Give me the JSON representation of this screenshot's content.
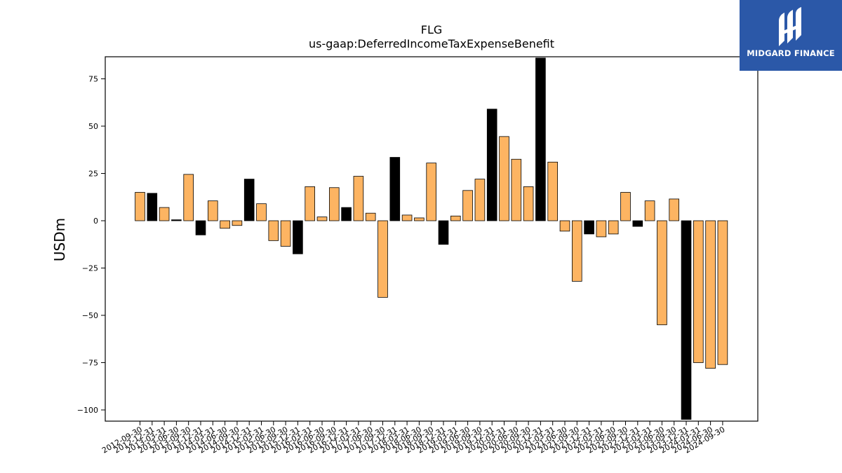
{
  "brand": {
    "name": "MIDGARD FINANCE",
    "bg_color": "#2b58a8"
  },
  "chart_data": {
    "type": "bar",
    "title": "FLG",
    "subtitle": "us-gaap:DeferredIncomeTaxExpenseBenefit",
    "ylabel": "USDm",
    "xlabel": "",
    "ylim": [
      -105,
      86
    ],
    "yticks": [
      -100,
      -75,
      -50,
      -25,
      0,
      25,
      50,
      75
    ],
    "grid": false,
    "colors": {
      "default": "#fdb462",
      "highlight": "#000000"
    },
    "categories": [
      "2012-09-30",
      "2012-12-31",
      "2013-03-31",
      "2013-06-30",
      "2013-09-30",
      "2013-12-31",
      "2014-03-31",
      "2014-06-30",
      "2014-09-30",
      "2014-12-31",
      "2015-03-31",
      "2015-06-30",
      "2015-09-30",
      "2015-12-31",
      "2016-03-31",
      "2016-06-30",
      "2016-09-30",
      "2016-12-31",
      "2017-03-31",
      "2017-06-30",
      "2017-09-30",
      "2017-12-31",
      "2018-03-31",
      "2018-06-30",
      "2018-09-30",
      "2018-12-31",
      "2019-03-31",
      "2019-06-30",
      "2019-09-30",
      "2019-12-31",
      "2020-03-31",
      "2020-06-30",
      "2020-09-30",
      "2020-12-31",
      "2021-03-31",
      "2021-06-30",
      "2021-09-30",
      "2021-12-31",
      "2022-03-31",
      "2022-06-30",
      "2022-09-30",
      "2022-12-31",
      "2023-03-31",
      "2023-06-30",
      "2023-09-30",
      "2023-12-31",
      "2024-03-31",
      "2024-06-30",
      "2024-09-30"
    ],
    "values": [
      15,
      14.5,
      7,
      0.5,
      24.5,
      -7.5,
      10.5,
      -4,
      -2.5,
      22,
      9,
      -10.5,
      -13.5,
      -17.5,
      18,
      2,
      17.5,
      7,
      23.5,
      4,
      -40.5,
      33.5,
      3,
      1.5,
      30.5,
      -12.5,
      2.5,
      16,
      22,
      59,
      44.5,
      32.5,
      18,
      86,
      31,
      -5.5,
      -32,
      -7,
      -8.5,
      -7,
      15,
      -3,
      10.5,
      -55,
      11.5,
      -105,
      -75,
      -78,
      -76
    ],
    "highlight": [
      false,
      true,
      false,
      true,
      false,
      true,
      false,
      false,
      false,
      true,
      false,
      false,
      false,
      true,
      false,
      false,
      false,
      true,
      false,
      false,
      false,
      true,
      false,
      false,
      false,
      true,
      false,
      false,
      false,
      true,
      false,
      false,
      false,
      true,
      false,
      false,
      false,
      true,
      false,
      false,
      false,
      true,
      false,
      false,
      false,
      true,
      false,
      false,
      false
    ]
  }
}
